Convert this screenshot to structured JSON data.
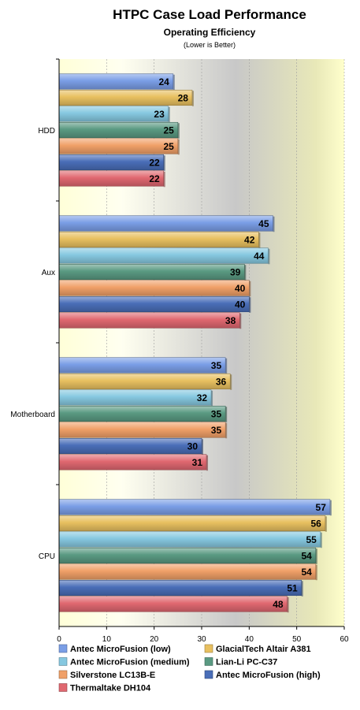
{
  "chart_data": {
    "type": "bar",
    "orientation": "horizontal",
    "title": "HTPC Case Load Performance",
    "subtitle": "Operating Efficiency",
    "note": "(Lower is Better)",
    "categories": [
      "HDD",
      "Aux",
      "Motherboard",
      "CPU"
    ],
    "xlim": [
      0,
      60
    ],
    "xticks": [
      0,
      10,
      20,
      30,
      40,
      50,
      60
    ],
    "grid": true,
    "legend_position": "bottom",
    "series": [
      {
        "name": "Antec MicroFusion (low)",
        "color": "#7a9ee6",
        "values": [
          24,
          45,
          35,
          57
        ]
      },
      {
        "name": "GlacialTech Altair A381",
        "color": "#e8c060",
        "values": [
          28,
          42,
          36,
          56
        ]
      },
      {
        "name": "Antec MicroFusion (medium)",
        "color": "#86c8e0",
        "values": [
          23,
          44,
          32,
          55
        ]
      },
      {
        "name": "Lian-Li PC-C37",
        "color": "#5a9a82",
        "values": [
          25,
          39,
          35,
          54
        ]
      },
      {
        "name": "Silverstone LC13B-E",
        "color": "#f0a068",
        "values": [
          25,
          40,
          35,
          54
        ]
      },
      {
        "name": "Antec MicroFusion (high)",
        "color": "#4a6eb8",
        "values": [
          22,
          40,
          30,
          51
        ]
      },
      {
        "name": "Thermaltake DH104",
        "color": "#e06870",
        "values": [
          22,
          38,
          31,
          48
        ]
      }
    ]
  }
}
